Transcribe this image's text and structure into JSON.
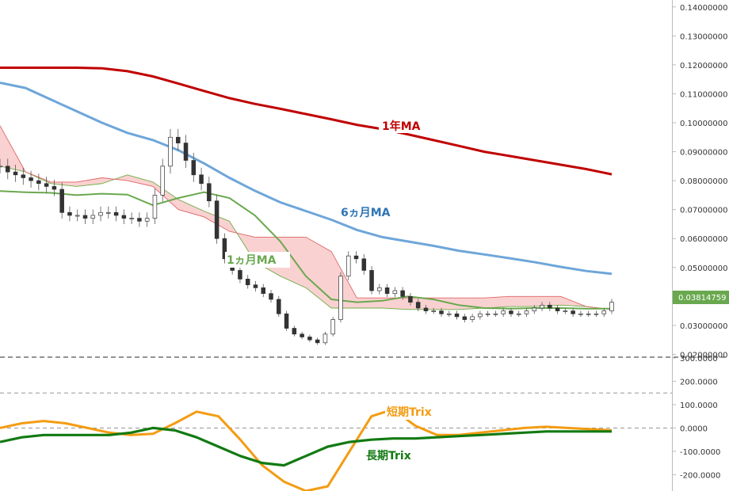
{
  "chart_data": [
    {
      "type": "candlestick",
      "panel": "price",
      "ylim": [
        0.0193,
        0.1424
      ],
      "yticks": [
        "0.14000000",
        "0.13000000",
        "0.12000000",
        "0.11000000",
        "0.10000000",
        "0.09000000",
        "0.08000000",
        "0.07000000",
        "0.06000000",
        "0.05000000",
        "0.04000000",
        "0.03000000",
        "0.02000000"
      ],
      "ytick_values": [
        0.14,
        0.13,
        0.12,
        0.11,
        0.1,
        0.09,
        0.08,
        0.07,
        0.06,
        0.05,
        0.04,
        0.03,
        0.02
      ],
      "last_price_label": "0.03814759",
      "last_price": 0.03814759,
      "grid": false,
      "annotations": [
        "1年MA",
        "6ヵ月MA",
        "1ヵ月MA"
      ],
      "close": [
        0.085,
        0.083,
        0.082,
        0.081,
        0.08,
        0.079,
        0.078,
        0.077,
        0.069,
        0.068,
        0.068,
        0.067,
        0.068,
        0.069,
        0.069,
        0.068,
        0.067,
        0.067,
        0.066,
        0.067,
        0.075,
        0.085,
        0.095,
        0.093,
        0.087,
        0.082,
        0.079,
        0.073,
        0.06,
        0.053,
        0.049,
        0.046,
        0.044,
        0.043,
        0.041,
        0.039,
        0.034,
        0.029,
        0.027,
        0.026,
        0.025,
        0.024,
        0.027,
        0.032,
        0.047,
        0.054,
        0.053,
        0.049,
        0.042,
        0.043,
        0.041,
        0.042,
        0.04,
        0.038,
        0.036,
        0.035,
        0.035,
        0.034,
        0.034,
        0.033,
        0.032,
        0.033,
        0.034,
        0.034,
        0.034,
        0.035,
        0.034,
        0.034,
        0.035,
        0.036,
        0.037,
        0.036,
        0.035,
        0.035,
        0.034,
        0.034,
        0.034,
        0.034,
        0.035,
        0.038
      ],
      "series": [
        {
          "name": "1年MA",
          "color": "#c00000",
          "values": [
            0.119,
            0.119,
            0.119,
            0.119,
            0.1188,
            0.1178,
            0.116,
            0.1135,
            0.111,
            0.1085,
            0.1065,
            0.1048,
            0.103,
            0.1012,
            0.0993,
            0.0978,
            0.096,
            0.094,
            0.092,
            0.09,
            0.0885,
            0.087,
            0.0855,
            0.084,
            0.0822
          ]
        },
        {
          "name": "6ヵ月MA",
          "color": "#6ea6d9",
          "values": [
            0.1138,
            0.112,
            0.108,
            0.104,
            0.1,
            0.0965,
            0.094,
            0.0905,
            0.086,
            0.081,
            0.0765,
            0.0725,
            0.0695,
            0.0665,
            0.063,
            0.0605,
            0.059,
            0.0575,
            0.0558,
            0.0545,
            0.0532,
            0.0518,
            0.0502,
            0.0488,
            0.0478
          ]
        },
        {
          "name": "1ヵ月MA",
          "color": "#6aa84f",
          "values": [
            0.0764,
            0.076,
            0.0758,
            0.075,
            0.0755,
            0.0752,
            0.0715,
            0.074,
            0.076,
            0.074,
            0.068,
            0.059,
            0.047,
            0.039,
            0.038,
            0.0385,
            0.04,
            0.039,
            0.037,
            0.036,
            0.0358,
            0.036,
            0.036,
            0.0358,
            0.0358
          ]
        },
        {
          "name": "Cloud span A",
          "color": "#70ad47",
          "values": [
            0.085,
            0.083,
            0.079,
            0.078,
            0.079,
            0.082,
            0.0795,
            0.0735,
            0.0695,
            0.066,
            0.052,
            0.047,
            0.043,
            0.036,
            0.036,
            0.036,
            0.0355,
            0.0355,
            0.0355,
            0.036,
            0.0365,
            0.0365,
            0.037,
            0.0365,
            0.0355
          ]
        },
        {
          "name": "Cloud span B",
          "color": "#e06666",
          "values": [
            0.099,
            0.083,
            0.0795,
            0.0795,
            0.081,
            0.08,
            0.078,
            0.07,
            0.0675,
            0.0625,
            0.0605,
            0.0605,
            0.0605,
            0.0555,
            0.0395,
            0.0395,
            0.0395,
            0.0395,
            0.0395,
            0.0395,
            0.04,
            0.04,
            0.04,
            0.0365,
            0.0355
          ]
        }
      ]
    },
    {
      "type": "line",
      "panel": "trix",
      "ylim": [
        -270,
        300
      ],
      "yticks": [
        "300.0000",
        "200.0000",
        "100.0000",
        "0.0000",
        "-100.0000",
        "-200.0000"
      ],
      "ytick_values": [
        300,
        200,
        100,
        0,
        -100,
        -200
      ],
      "reference_lines": [
        0,
        150
      ],
      "series": [
        {
          "name": "短期Trix",
          "color": "#f39c12",
          "values": [
            0,
            20,
            30,
            20,
            0,
            -20,
            -30,
            -25,
            20,
            70,
            50,
            -50,
            -160,
            -230,
            -270,
            -250,
            -100,
            50,
            80,
            10,
            -30,
            -30,
            -20,
            -10,
            0,
            5,
            0,
            -5,
            -10
          ]
        },
        {
          "name": "長期Trix",
          "color": "#127a12",
          "values": [
            -60,
            -40,
            -30,
            -30,
            -30,
            -30,
            -20,
            0,
            -10,
            -40,
            -80,
            -120,
            -150,
            -160,
            -120,
            -80,
            -60,
            -50,
            -45,
            -45,
            -40,
            -35,
            -30,
            -25,
            -20,
            -15,
            -15,
            -15,
            -15
          ]
        }
      ]
    }
  ]
}
